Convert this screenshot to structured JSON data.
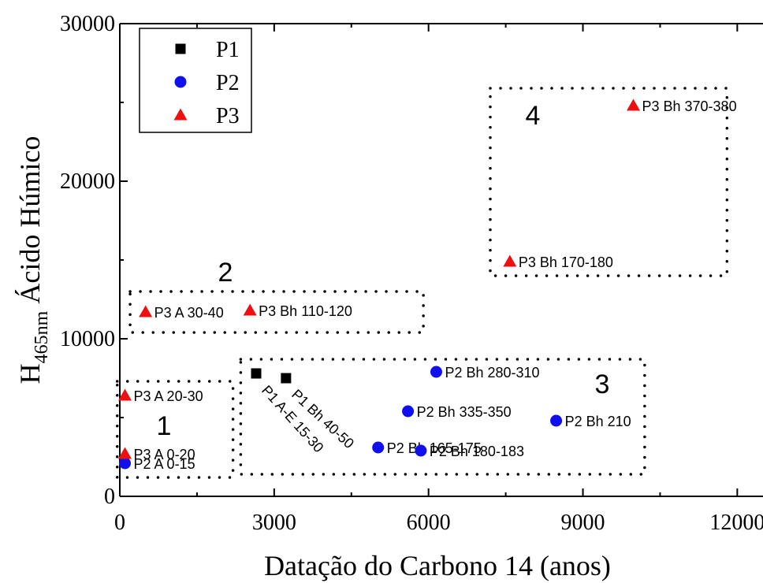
{
  "chart_data": {
    "type": "scatter",
    "xlabel": "Datação do Carbono 14 (anos)",
    "ylabel_main": "H",
    "ylabel_sub": "465nm",
    "ylabel_rest": " Ácido Húmico",
    "xlim": [
      0,
      12500
    ],
    "ylim": [
      0,
      30000
    ],
    "xticks": [
      0,
      3000,
      6000,
      9000,
      12000
    ],
    "yticks": [
      0,
      10000,
      20000,
      30000
    ],
    "legend_position": "top-left",
    "series": [
      {
        "name": "P1",
        "marker": "square",
        "color": "#000000",
        "points": [
          {
            "x": 2650,
            "y": 7800,
            "label": "P1 A-E 15-30"
          },
          {
            "x": 3230,
            "y": 7500,
            "label": "P1 Bh 40-50"
          }
        ]
      },
      {
        "name": "P2",
        "marker": "circle",
        "color": "#1010ee",
        "points": [
          {
            "x": 100,
            "y": 2100,
            "label": "P2 A 0-15"
          },
          {
            "x": 5020,
            "y": 3100,
            "label": "P2 Bh 165-175"
          },
          {
            "x": 5850,
            "y": 2900,
            "label": "P2 Bh 180-183"
          },
          {
            "x": 5600,
            "y": 5400,
            "label": "P2 Bh 335-350"
          },
          {
            "x": 6150,
            "y": 7900,
            "label": "P2 Bh 280-310"
          },
          {
            "x": 8480,
            "y": 4800,
            "label": "P2 Bh 210"
          }
        ]
      },
      {
        "name": "P3",
        "marker": "triangle",
        "color": "#ee1010",
        "points": [
          {
            "x": 100,
            "y": 2700,
            "label": "P3 A 0-20"
          },
          {
            "x": 100,
            "y": 6400,
            "label": "P3 A 20-30"
          },
          {
            "x": 500,
            "y": 11700,
            "label": "P3 A 30-40"
          },
          {
            "x": 2530,
            "y": 11800,
            "label": "P3 Bh 110-120"
          },
          {
            "x": 7580,
            "y": 14900,
            "label": "P3 Bh 170-180"
          },
          {
            "x": 9980,
            "y": 24800,
            "label": "P3 Bh 370-380"
          }
        ]
      }
    ],
    "groups": [
      {
        "label": "1",
        "x0": -50,
        "x1": 2200,
        "y0": 1200,
        "y1": 7300
      },
      {
        "label": "2",
        "x0": 200,
        "x1": 5900,
        "y0": 10400,
        "y1": 13000
      },
      {
        "label": "3",
        "x0": 2350,
        "x1": 10200,
        "y0": 1400,
        "y1": 8700
      },
      {
        "label": "4",
        "x0": 7200,
        "x1": 11800,
        "y0": 14000,
        "y1": 25900
      }
    ]
  }
}
